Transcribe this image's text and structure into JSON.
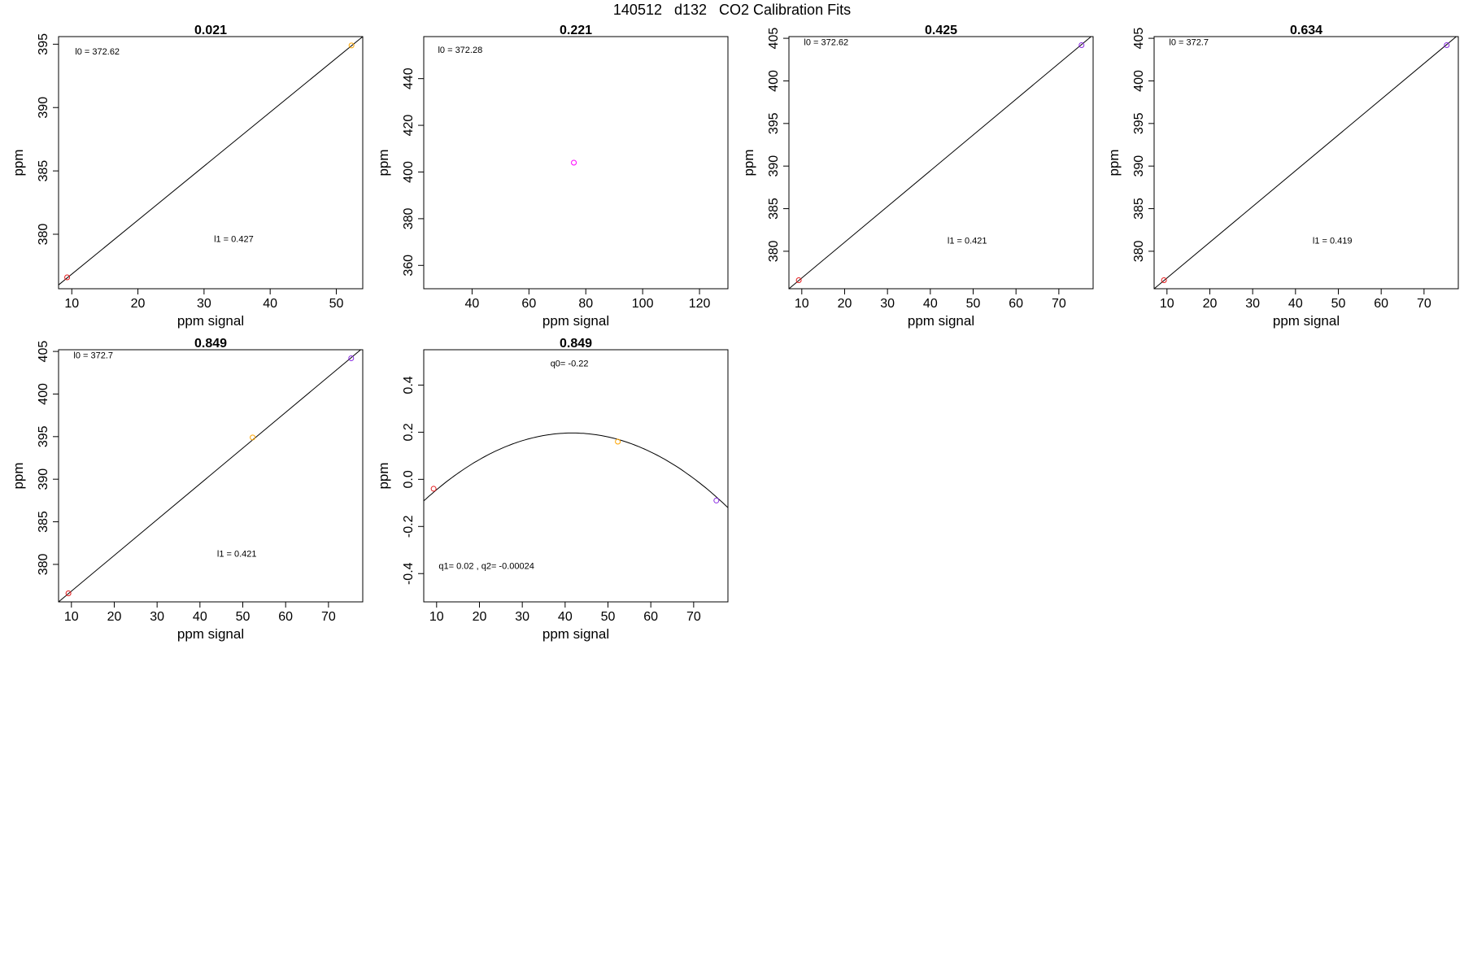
{
  "figure": {
    "title": "140512   d132   CO2 Calibration Fits"
  },
  "chart_data": [
    {
      "type": "scatter",
      "title": "0.021",
      "xlabel": "ppm signal",
      "ylabel": "ppm",
      "xlim": [
        8,
        54
      ],
      "ylim": [
        375.7,
        395.6
      ],
      "xticks": [
        10,
        20,
        30,
        40,
        50
      ],
      "yticks": [
        380,
        385,
        390,
        395
      ],
      "points": [
        {
          "x": 9.3,
          "y": 376.6,
          "color": "#e41a1c"
        },
        {
          "x": 52.3,
          "y": 394.9,
          "color": "#ffa500"
        }
      ],
      "fit": {
        "kind": "linear",
        "x0": 8,
        "y0": 376.0,
        "x1": 54,
        "y1": 395.6
      },
      "annotations": [
        {
          "text": "l0 =  372.62",
          "x": 10.5,
          "y": 394.2
        },
        {
          "text": "l1 =  0.427",
          "x": 31.5,
          "y": 379.4
        }
      ]
    },
    {
      "type": "scatter",
      "title": "0.221",
      "xlabel": "ppm signal",
      "ylabel": "ppm",
      "xlim": [
        23,
        130
      ],
      "ylim": [
        350,
        458
      ],
      "xticks": [
        40,
        60,
        80,
        100,
        120
      ],
      "yticks": [
        360,
        380,
        400,
        420,
        440
      ],
      "points": [
        {
          "x": 75.8,
          "y": 404,
          "color": "#ff00ff"
        }
      ],
      "annotations": [
        {
          "text": "l0 =  372.28",
          "x": 28,
          "y": 451
        }
      ]
    },
    {
      "type": "scatter",
      "title": "0.425",
      "xlabel": "ppm signal",
      "ylabel": "ppm",
      "xlim": [
        7,
        78
      ],
      "ylim": [
        375.6,
        405.2
      ],
      "xticks": [
        10,
        20,
        30,
        40,
        50,
        60,
        70
      ],
      "yticks": [
        380,
        385,
        390,
        395,
        400,
        405
      ],
      "points": [
        {
          "x": 9.3,
          "y": 376.6,
          "color": "#e41a1c"
        },
        {
          "x": 75.3,
          "y": 404.2,
          "color": "#8a2be2"
        }
      ],
      "fit": {
        "kind": "linear",
        "x0": 7,
        "y0": 375.6,
        "x1": 78,
        "y1": 405.4
      },
      "annotations": [
        {
          "text": "l0 =  372.62",
          "x": 10.5,
          "y": 404.2
        },
        {
          "text": "l1 =  0.421",
          "x": 44,
          "y": 380.9
        }
      ]
    },
    {
      "type": "scatter",
      "title": "0.634",
      "xlabel": "ppm signal",
      "ylabel": "ppm",
      "xlim": [
        7,
        78
      ],
      "ylim": [
        375.6,
        405.2
      ],
      "xticks": [
        10,
        20,
        30,
        40,
        50,
        60,
        70
      ],
      "yticks": [
        380,
        385,
        390,
        395,
        400,
        405
      ],
      "points": [
        {
          "x": 9.3,
          "y": 376.6,
          "color": "#e41a1c"
        },
        {
          "x": 75.3,
          "y": 404.2,
          "color": "#8a2be2"
        }
      ],
      "fit": {
        "kind": "linear",
        "x0": 7,
        "y0": 375.6,
        "x1": 78,
        "y1": 405.4
      },
      "annotations": [
        {
          "text": "l0 =  372.7",
          "x": 10.5,
          "y": 404.2
        },
        {
          "text": "l1 =  0.419",
          "x": 44,
          "y": 380.9
        }
      ]
    },
    {
      "type": "scatter",
      "title": "0.849",
      "xlabel": "ppm signal",
      "ylabel": "ppm",
      "xlim": [
        7,
        78
      ],
      "ylim": [
        375.6,
        405.2
      ],
      "xticks": [
        10,
        20,
        30,
        40,
        50,
        60,
        70
      ],
      "yticks": [
        380,
        385,
        390,
        395,
        400,
        405
      ],
      "points": [
        {
          "x": 9.3,
          "y": 376.6,
          "color": "#e41a1c"
        },
        {
          "x": 52.3,
          "y": 394.9,
          "color": "#ffa500"
        },
        {
          "x": 75.3,
          "y": 404.2,
          "color": "#8a2be2"
        }
      ],
      "fit": {
        "kind": "linear",
        "x0": 7,
        "y0": 375.6,
        "x1": 78,
        "y1": 405.4
      },
      "annotations": [
        {
          "text": "l0 =  372.7",
          "x": 10.5,
          "y": 404.2
        },
        {
          "text": "l1 =  0.421",
          "x": 44,
          "y": 380.9
        }
      ]
    },
    {
      "type": "scatter",
      "title": "0.849",
      "xlabel": "ppm signal",
      "ylabel": "ppm",
      "xlim": [
        7,
        78
      ],
      "ylim": [
        -0.52,
        0.55
      ],
      "xticks": [
        10,
        20,
        30,
        40,
        50,
        60,
        70
      ],
      "yticks": [
        -0.4,
        -0.2,
        0.0,
        0.2,
        0.4
      ],
      "ytick_labels": [
        "-0.4",
        "-0.2",
        "0.0",
        "0.2",
        "0.4"
      ],
      "points": [
        {
          "x": 9.3,
          "y": -0.04,
          "color": "#e41a1c"
        },
        {
          "x": 52.3,
          "y": 0.16,
          "color": "#ffa500"
        },
        {
          "x": 75.3,
          "y": -0.09,
          "color": "#8a2be2"
        }
      ],
      "fit": {
        "kind": "quadratic",
        "q0": -0.22,
        "q1": 0.02,
        "q2": -0.00024
      },
      "annotations": [
        {
          "text": "q0= -0.22",
          "x": 41,
          "y": 0.48
        },
        {
          "text": "q1= 0.02 , q2= -0.00024",
          "x": 10.5,
          "y": -0.38
        }
      ]
    }
  ]
}
